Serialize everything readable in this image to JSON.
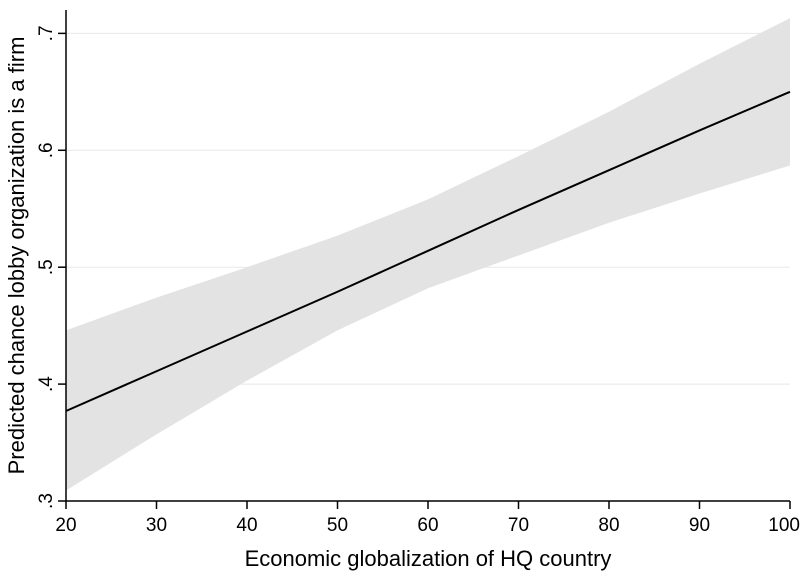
{
  "chart_data": {
    "type": "line",
    "title": "",
    "xlabel": "Economic globalization of HQ country",
    "ylabel": "Predicted chance lobby organization is a firm",
    "xlim": [
      20,
      100
    ],
    "ylim": [
      0.3,
      0.72
    ],
    "xticks": [
      20,
      30,
      40,
      50,
      60,
      70,
      80,
      90,
      100
    ],
    "xtick_labels": [
      "20",
      "30",
      "40",
      "50",
      "60",
      "70",
      "80",
      "90",
      "100"
    ],
    "yticks": [
      0.3,
      0.4,
      0.5,
      0.6,
      0.7
    ],
    "ytick_labels": [
      ".3",
      ".4",
      ".5",
      ".6",
      ".7"
    ],
    "grid": "horizontal",
    "legend": "none",
    "series": [
      {
        "x": [
          20,
          30,
          40,
          50,
          60,
          70,
          80,
          90,
          100
        ],
        "values": [
          0.377,
          0.411,
          0.445,
          0.479,
          0.514,
          0.549,
          0.583,
          0.617,
          0.65
        ]
      }
    ],
    "confidence_band": {
      "x": [
        20,
        30,
        40,
        50,
        60,
        70,
        80,
        90,
        100
      ],
      "lower": [
        0.309,
        0.357,
        0.403,
        0.446,
        0.482,
        0.51,
        0.538,
        0.563,
        0.587
      ],
      "upper": [
        0.446,
        0.474,
        0.5,
        0.527,
        0.558,
        0.595,
        0.633,
        0.674,
        0.713
      ]
    },
    "colors": {
      "line": "#000000",
      "band": "#e3e3e3",
      "grid": "#e8e8e8",
      "axis": "#000000"
    }
  }
}
